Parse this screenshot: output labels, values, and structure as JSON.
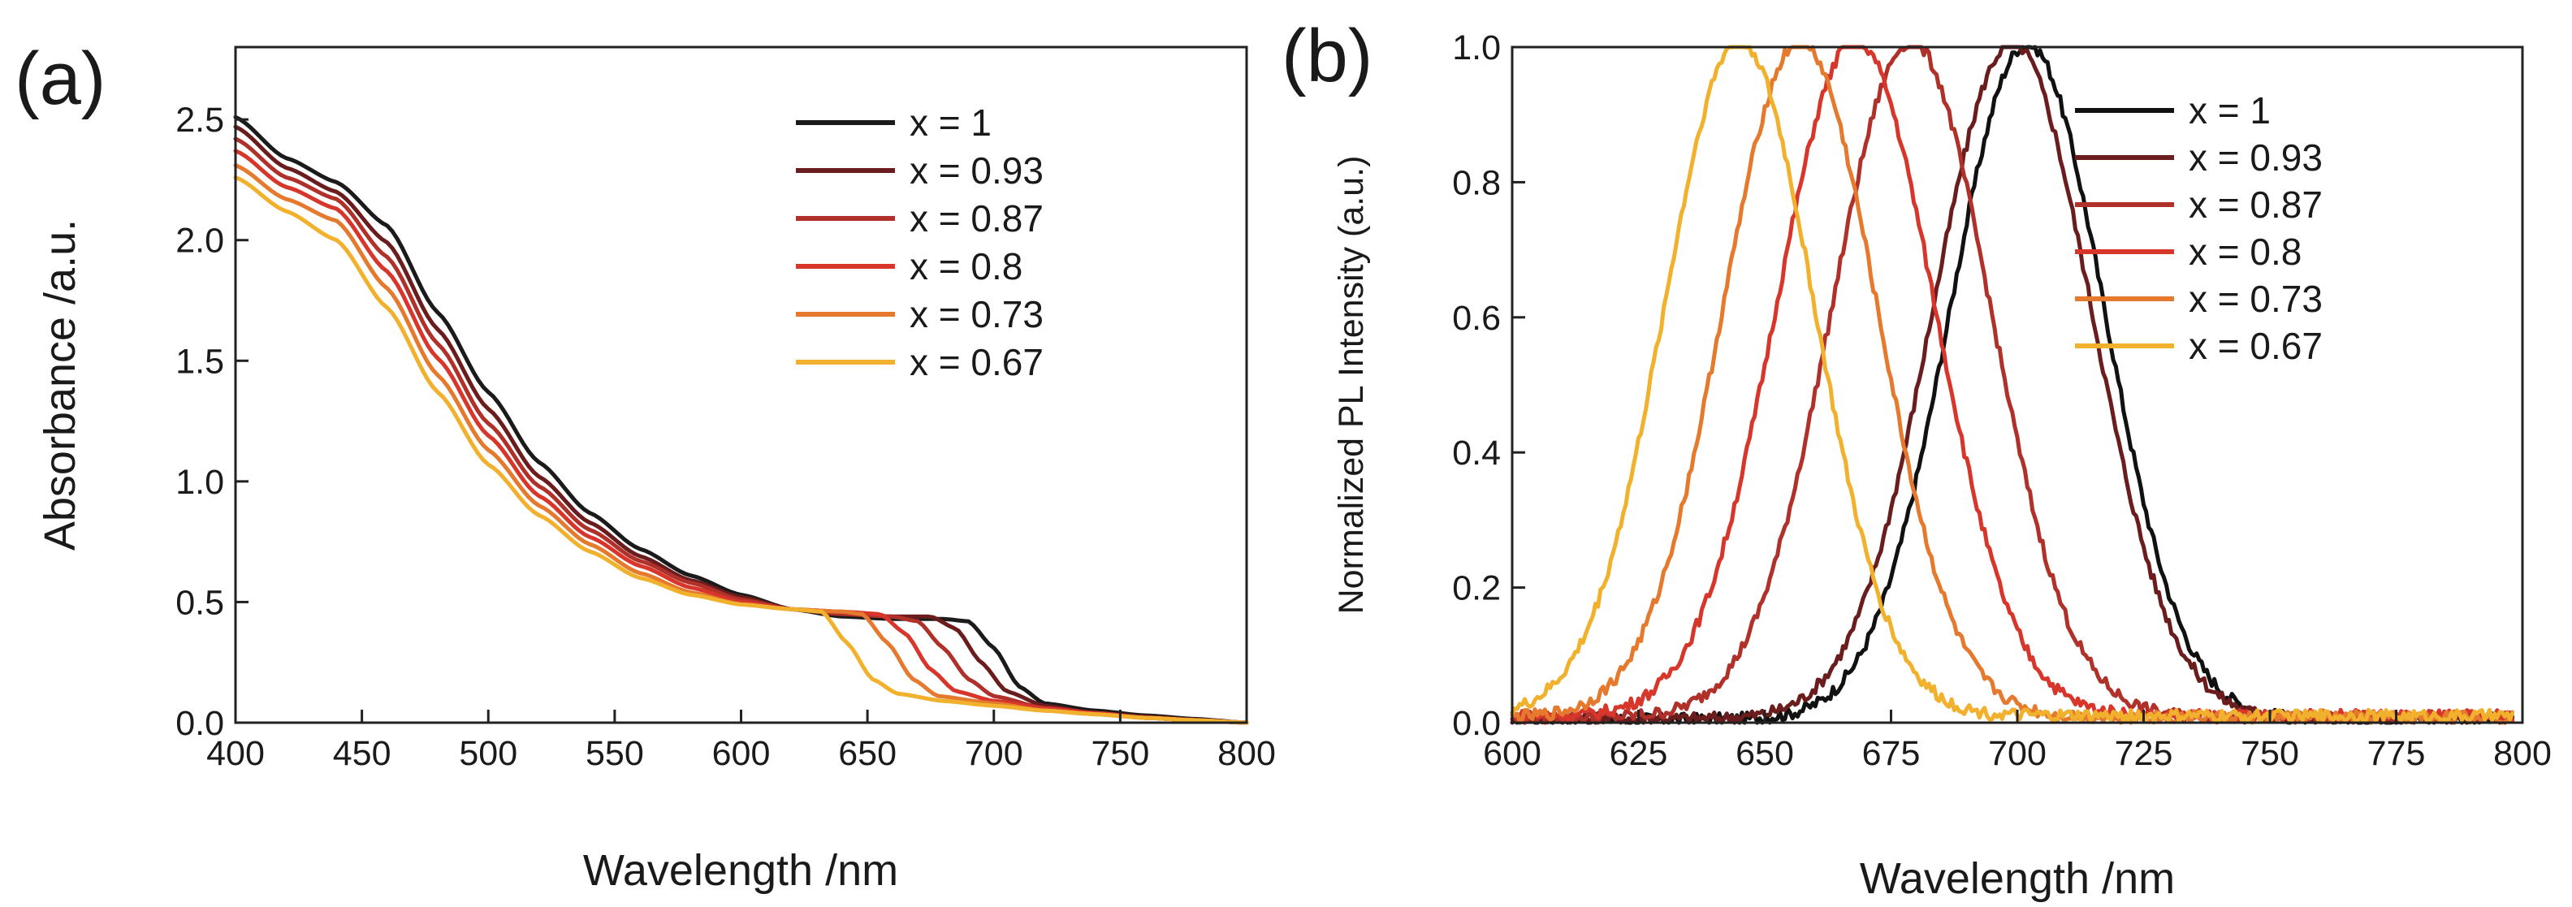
{
  "chart_data": [
    {
      "type": "line",
      "panel_label": "(a)",
      "xlabel": "Wavelength /nm",
      "ylabel": "Absorbance /a.u.",
      "xlim": [
        400,
        800
      ],
      "ylim": [
        0,
        2.8
      ],
      "xticks": [
        400,
        450,
        500,
        550,
        600,
        650,
        700,
        750,
        800
      ],
      "yticks": [
        0.0,
        0.5,
        1.0,
        1.5,
        2.0,
        2.5
      ],
      "xtick_labels": [
        "400",
        "450",
        "500",
        "550",
        "600",
        "650",
        "700",
        "750",
        "800"
      ],
      "ytick_labels": [
        "0.0",
        "0.5",
        "1.0",
        "1.5",
        "2.0",
        "2.5"
      ],
      "legend_position": "top-right",
      "grid": false,
      "series": [
        {
          "name": "x = 1",
          "color": "#1b1b1b",
          "points": [
            [
              400,
              2.51
            ],
            [
              420,
              2.34
            ],
            [
              440,
              2.24
            ],
            [
              460,
              2.06
            ],
            [
              480,
              1.7
            ],
            [
              500,
              1.37
            ],
            [
              520,
              1.08
            ],
            [
              540,
              0.87
            ],
            [
              560,
              0.72
            ],
            [
              580,
              0.61
            ],
            [
              600,
              0.53
            ],
            [
              620,
              0.47
            ],
            [
              640,
              0.44
            ],
            [
              660,
              0.43
            ],
            [
              680,
              0.43
            ],
            [
              690,
              0.42
            ],
            [
              700,
              0.31
            ],
            [
              710,
              0.15
            ],
            [
              720,
              0.08
            ],
            [
              740,
              0.05
            ],
            [
              760,
              0.03
            ],
            [
              780,
              0.015
            ],
            [
              800,
              0.0
            ]
          ]
        },
        {
          "name": "x = 0.93",
          "color": "#6b1d1d",
          "points": [
            [
              400,
              2.47
            ],
            [
              420,
              2.3
            ],
            [
              440,
              2.2
            ],
            [
              460,
              1.99
            ],
            [
              480,
              1.63
            ],
            [
              500,
              1.3
            ],
            [
              520,
              1.02
            ],
            [
              540,
              0.83
            ],
            [
              560,
              0.69
            ],
            [
              580,
              0.59
            ],
            [
              600,
              0.52
            ],
            [
              620,
              0.47
            ],
            [
              640,
              0.45
            ],
            [
              660,
              0.44
            ],
            [
              675,
              0.44
            ],
            [
              685,
              0.39
            ],
            [
              695,
              0.25
            ],
            [
              705,
              0.13
            ],
            [
              720,
              0.07
            ],
            [
              740,
              0.04
            ],
            [
              760,
              0.025
            ],
            [
              780,
              0.012
            ],
            [
              800,
              0.0
            ]
          ]
        },
        {
          "name": "x = 0.87",
          "color": "#b0302a",
          "points": [
            [
              400,
              2.42
            ],
            [
              420,
              2.26
            ],
            [
              440,
              2.17
            ],
            [
              460,
              1.93
            ],
            [
              480,
              1.57
            ],
            [
              500,
              1.24
            ],
            [
              520,
              0.98
            ],
            [
              540,
              0.8
            ],
            [
              560,
              0.67
            ],
            [
              580,
              0.58
            ],
            [
              600,
              0.51
            ],
            [
              620,
              0.47
            ],
            [
              640,
              0.45
            ],
            [
              660,
              0.44
            ],
            [
              670,
              0.42
            ],
            [
              680,
              0.31
            ],
            [
              690,
              0.18
            ],
            [
              700,
              0.11
            ],
            [
              720,
              0.06
            ],
            [
              740,
              0.04
            ],
            [
              760,
              0.02
            ],
            [
              780,
              0.01
            ],
            [
              800,
              0.0
            ]
          ]
        },
        {
          "name": "x = 0.8",
          "color": "#d8362b",
          "points": [
            [
              400,
              2.37
            ],
            [
              420,
              2.22
            ],
            [
              440,
              2.13
            ],
            [
              460,
              1.87
            ],
            [
              480,
              1.51
            ],
            [
              500,
              1.19
            ],
            [
              520,
              0.94
            ],
            [
              540,
              0.77
            ],
            [
              560,
              0.65
            ],
            [
              580,
              0.56
            ],
            [
              600,
              0.5
            ],
            [
              620,
              0.47
            ],
            [
              640,
              0.46
            ],
            [
              655,
              0.45
            ],
            [
              665,
              0.37
            ],
            [
              675,
              0.22
            ],
            [
              685,
              0.13
            ],
            [
              700,
              0.09
            ],
            [
              720,
              0.06
            ],
            [
              740,
              0.04
            ],
            [
              760,
              0.02
            ],
            [
              780,
              0.01
            ],
            [
              800,
              0.0
            ]
          ]
        },
        {
          "name": "x = 0.73",
          "color": "#e57a2e",
          "points": [
            [
              400,
              2.31
            ],
            [
              420,
              2.17
            ],
            [
              440,
              2.08
            ],
            [
              460,
              1.8
            ],
            [
              480,
              1.44
            ],
            [
              500,
              1.13
            ],
            [
              520,
              0.9
            ],
            [
              540,
              0.74
            ],
            [
              560,
              0.62
            ],
            [
              580,
              0.54
            ],
            [
              600,
              0.49
            ],
            [
              620,
              0.47
            ],
            [
              640,
              0.46
            ],
            [
              648,
              0.45
            ],
            [
              658,
              0.33
            ],
            [
              668,
              0.18
            ],
            [
              678,
              0.11
            ],
            [
              700,
              0.08
            ],
            [
              720,
              0.05
            ],
            [
              740,
              0.035
            ],
            [
              760,
              0.02
            ],
            [
              780,
              0.01
            ],
            [
              800,
              0.0
            ]
          ]
        },
        {
          "name": "x = 0.67",
          "color": "#f2b12c",
          "points": [
            [
              400,
              2.26
            ],
            [
              420,
              2.12
            ],
            [
              440,
              2.0
            ],
            [
              460,
              1.72
            ],
            [
              480,
              1.37
            ],
            [
              500,
              1.07
            ],
            [
              520,
              0.86
            ],
            [
              540,
              0.71
            ],
            [
              560,
              0.6
            ],
            [
              580,
              0.53
            ],
            [
              600,
              0.49
            ],
            [
              620,
              0.47
            ],
            [
              632,
              0.46
            ],
            [
              642,
              0.33
            ],
            [
              652,
              0.18
            ],
            [
              662,
              0.12
            ],
            [
              680,
              0.09
            ],
            [
              700,
              0.07
            ],
            [
              720,
              0.05
            ],
            [
              740,
              0.035
            ],
            [
              760,
              0.02
            ],
            [
              780,
              0.01
            ],
            [
              800,
              0.0
            ]
          ]
        }
      ]
    },
    {
      "type": "line",
      "panel_label": "(b)",
      "xlabel": "Wavelength /nm",
      "ylabel": "Normalized PL Intensity (a.u.)",
      "xlim": [
        600,
        800
      ],
      "ylim": [
        0,
        1.0
      ],
      "xticks": [
        600,
        625,
        650,
        675,
        700,
        725,
        750,
        775,
        800
      ],
      "yticks": [
        0.0,
        0.2,
        0.4,
        0.6,
        0.8,
        1.0
      ],
      "xtick_labels": [
        "600",
        "625",
        "650",
        "675",
        "700",
        "725",
        "750",
        "775",
        "800"
      ],
      "ytick_labels": [
        "0.0",
        "0.2",
        "0.4",
        "0.6",
        "0.8",
        "1.0"
      ],
      "legend_position": "top-right",
      "grid": false,
      "series": [
        {
          "name": "x = 1",
          "color": "#111111",
          "peak": 702,
          "fwhm": 36,
          "baseline": 0.005
        },
        {
          "name": "x = 0.93",
          "color": "#6b1d1d",
          "peak": 699,
          "fwhm": 37,
          "baseline": 0.006
        },
        {
          "name": "x = 0.87",
          "color": "#b0302a",
          "peak": 679,
          "fwhm": 37,
          "baseline": 0.008
        },
        {
          "name": "x = 0.8",
          "color": "#d8362b",
          "peak": 668,
          "fwhm": 37,
          "baseline": 0.01
        },
        {
          "name": "x = 0.73",
          "color": "#e57a2e",
          "peak": 657,
          "fwhm": 36,
          "baseline": 0.008
        },
        {
          "name": "x = 0.67",
          "color": "#f2b12c",
          "peak": 645,
          "fwhm": 35,
          "baseline": 0.01
        }
      ]
    }
  ]
}
